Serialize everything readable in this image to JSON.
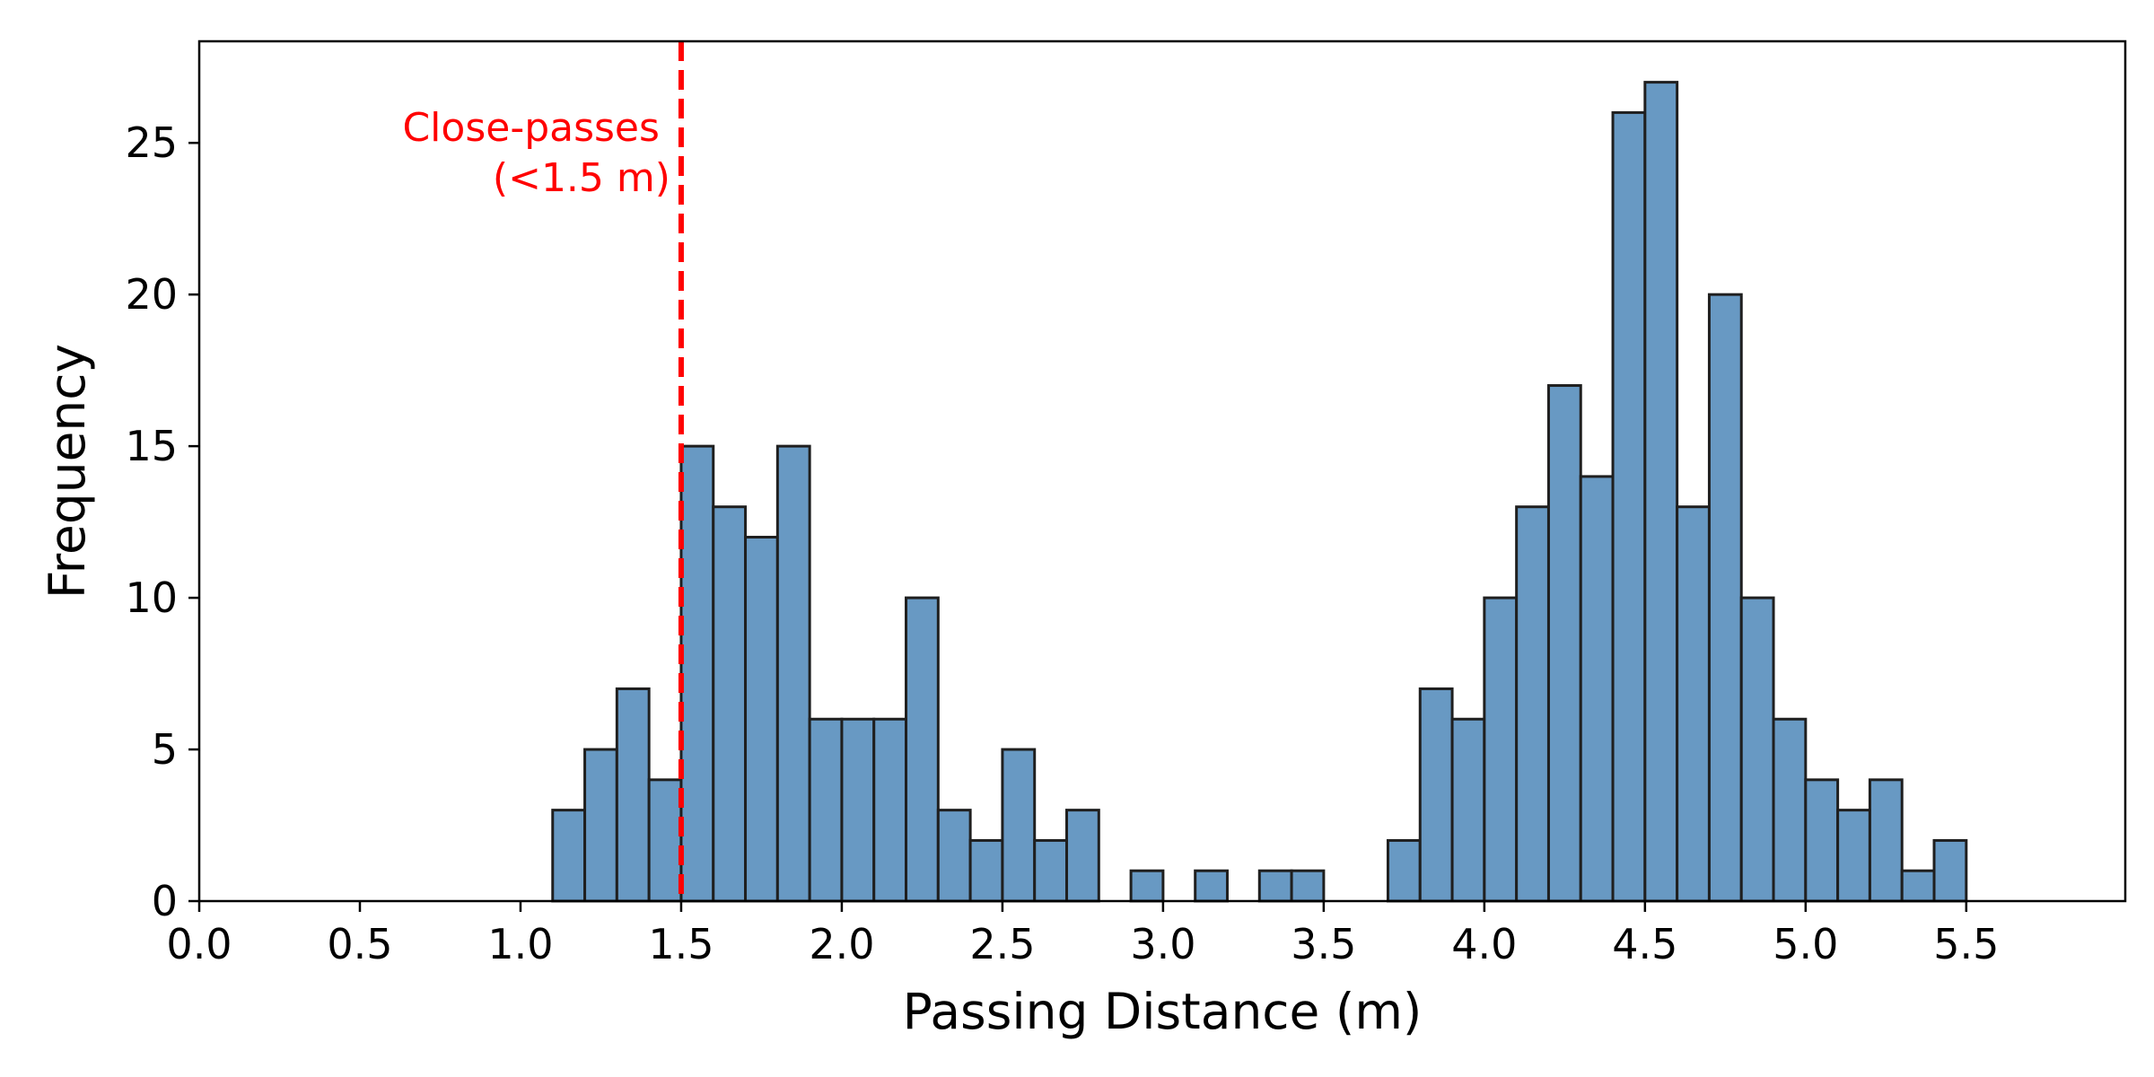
{
  "chart_data": {
    "type": "bar",
    "title": "",
    "xlabel": "Passing Distance (m)",
    "ylabel": "Frequency",
    "xlim": [
      0.0,
      5.995
    ],
    "ylim": [
      0,
      28.35
    ],
    "bin_width": 0.1,
    "xticks": [
      "0.0",
      "0.5",
      "1.0",
      "1.5",
      "2.0",
      "2.5",
      "3.0",
      "3.5",
      "4.0",
      "4.5",
      "5.0",
      "5.5"
    ],
    "yticks": [
      "0",
      "5",
      "10",
      "15",
      "20",
      "25"
    ],
    "bins": [
      {
        "x": 1.1,
        "value": 3
      },
      {
        "x": 1.2,
        "value": 5
      },
      {
        "x": 1.3,
        "value": 7
      },
      {
        "x": 1.4,
        "value": 4
      },
      {
        "x": 1.5,
        "value": 15
      },
      {
        "x": 1.6,
        "value": 13
      },
      {
        "x": 1.7,
        "value": 12
      },
      {
        "x": 1.8,
        "value": 15
      },
      {
        "x": 1.9,
        "value": 6
      },
      {
        "x": 2.0,
        "value": 6
      },
      {
        "x": 2.1,
        "value": 6
      },
      {
        "x": 2.2,
        "value": 10
      },
      {
        "x": 2.3,
        "value": 3
      },
      {
        "x": 2.4,
        "value": 2
      },
      {
        "x": 2.5,
        "value": 5
      },
      {
        "x": 2.6,
        "value": 2
      },
      {
        "x": 2.7,
        "value": 3
      },
      {
        "x": 2.8,
        "value": 0
      },
      {
        "x": 2.9,
        "value": 1
      },
      {
        "x": 3.0,
        "value": 0
      },
      {
        "x": 3.1,
        "value": 1
      },
      {
        "x": 3.2,
        "value": 0
      },
      {
        "x": 3.3,
        "value": 1
      },
      {
        "x": 3.4,
        "value": 1
      },
      {
        "x": 3.5,
        "value": 0
      },
      {
        "x": 3.6,
        "value": 0
      },
      {
        "x": 3.7,
        "value": 2
      },
      {
        "x": 3.8,
        "value": 7
      },
      {
        "x": 3.9,
        "value": 6
      },
      {
        "x": 4.0,
        "value": 10
      },
      {
        "x": 4.1,
        "value": 13
      },
      {
        "x": 4.2,
        "value": 17
      },
      {
        "x": 4.3,
        "value": 14
      },
      {
        "x": 4.4,
        "value": 26
      },
      {
        "x": 4.5,
        "value": 27
      },
      {
        "x": 4.6,
        "value": 13
      },
      {
        "x": 4.7,
        "value": 20
      },
      {
        "x": 4.8,
        "value": 10
      },
      {
        "x": 4.9,
        "value": 6
      },
      {
        "x": 5.0,
        "value": 4
      },
      {
        "x": 5.1,
        "value": 3
      },
      {
        "x": 5.2,
        "value": 4
      },
      {
        "x": 5.3,
        "value": 1
      },
      {
        "x": 5.4,
        "value": 2
      },
      {
        "x": 5.5,
        "value": 0
      },
      {
        "x": 5.6,
        "value": 0
      },
      {
        "x": 5.7,
        "value": 0
      },
      {
        "x": 5.8,
        "value": 0
      }
    ],
    "threshold": {
      "x": 1.5,
      "label_line1": "Close-passes",
      "label_line2": "(<1.5 m)",
      "color": "#ff0000"
    },
    "bar_color": "#6899c3",
    "edge_color": "#1f1f1f"
  }
}
